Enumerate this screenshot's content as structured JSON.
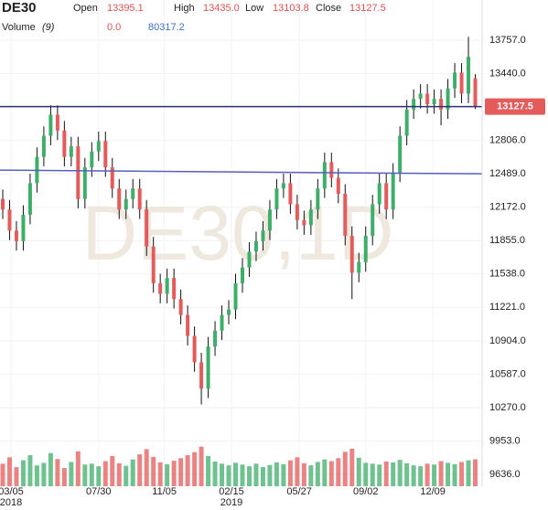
{
  "chart_data": {
    "type": "candlestick",
    "symbol": "DE30",
    "watermark": "DE30,1D",
    "ohlc_names": {
      "open": "Open",
      "high": "High",
      "low": "Low",
      "close": "Close"
    },
    "ohlc_labels": {
      "open": "13395.1",
      "high": "13435.0",
      "low": "13103.8",
      "close": "13127.5"
    },
    "volume_legend": {
      "name": "Volume",
      "period": "(9)",
      "ma_label": "0.0",
      "value_label": "80317.2"
    },
    "open": [
      12250,
      12150,
      11950,
      11850,
      12100,
      12400,
      12650,
      12850,
      13050,
      12900,
      12650,
      12750,
      12250,
      12550,
      12700,
      12800,
      12550,
      12350,
      12150,
      12250,
      12350,
      12150,
      11800,
      11450,
      11350,
      11500,
      11300,
      11150,
      10950,
      10700,
      10450,
      10850,
      11000,
      11150,
      11200,
      11450,
      11600,
      11750,
      11850,
      11950,
      12150,
      12350,
      12400,
      12200,
      12050,
      12000,
      12150,
      12350,
      12600,
      12450,
      12300,
      11900,
      11550,
      11650,
      11900,
      12200,
      12400,
      12150,
      12500,
      12850,
      13100,
      13200,
      13250,
      13150,
      13200,
      13100,
      13300,
      13450,
      13250,
      13395.1
    ],
    "high": [
      12340,
      12240,
      12040,
      12190,
      12490,
      12740,
      12940,
      13140,
      13140,
      12990,
      12840,
      12840,
      12640,
      12790,
      12890,
      12890,
      12640,
      12440,
      12340,
      12440,
      12440,
      12240,
      11890,
      11540,
      11590,
      11590,
      11390,
      11240,
      11040,
      10790,
      10940,
      11090,
      11240,
      11290,
      11540,
      11690,
      11840,
      11940,
      12040,
      12240,
      12440,
      12490,
      12490,
      12290,
      12140,
      12240,
      12440,
      12690,
      12690,
      12540,
      12390,
      11990,
      11740,
      11990,
      12290,
      12490,
      12490,
      12590,
      12940,
      13190,
      13290,
      13340,
      13340,
      13290,
      13290,
      13390,
      13540,
      13540,
      13790,
      13435.0
    ],
    "low": [
      12060,
      11860,
      11760,
      11760,
      12010,
      12310,
      12560,
      12760,
      12810,
      12560,
      12560,
      12160,
      12160,
      12460,
      12610,
      12460,
      12260,
      12060,
      12060,
      12160,
      12060,
      11710,
      11360,
      11260,
      11260,
      11210,
      11060,
      10860,
      10610,
      10300,
      10360,
      10760,
      10910,
      11060,
      11110,
      11360,
      11510,
      11660,
      11760,
      11860,
      12060,
      12260,
      12110,
      11960,
      11910,
      11910,
      12060,
      12260,
      12360,
      12210,
      11810,
      11300,
      11460,
      11560,
      11810,
      12110,
      12060,
      12060,
      12410,
      12760,
      13010,
      13110,
      13060,
      13060,
      12950,
      13010,
      13210,
      13160,
      13160,
      13103.8
    ],
    "close": [
      12150,
      11950,
      11850,
      12100,
      12400,
      12650,
      12850,
      13050,
      12900,
      12650,
      12750,
      12250,
      12550,
      12700,
      12800,
      12550,
      12350,
      12150,
      12250,
      12350,
      12150,
      11800,
      11450,
      11350,
      11500,
      11300,
      11150,
      10950,
      10700,
      10450,
      10850,
      11000,
      11150,
      11200,
      11450,
      11600,
      11750,
      11850,
      11950,
      12150,
      12350,
      12400,
      12200,
      12050,
      12000,
      12150,
      12350,
      12600,
      12450,
      12300,
      11900,
      11550,
      11650,
      11900,
      12200,
      12400,
      12150,
      12500,
      12850,
      13100,
      13200,
      13250,
      13150,
      13200,
      13100,
      13300,
      13450,
      13250,
      13600,
      13127.5
    ],
    "volume": [
      70000,
      85000,
      62000,
      78000,
      90000,
      66000,
      72000,
      95000,
      81000,
      60000,
      74000,
      99000,
      68000,
      70000,
      64000,
      76000,
      88000,
      71000,
      65000,
      80000,
      92000,
      104000,
      86000,
      73000,
      69000,
      77000,
      83000,
      90000,
      97000,
      110000,
      88000,
      75000,
      70000,
      66000,
      72000,
      68000,
      64000,
      70000,
      62000,
      67000,
      73000,
      69000,
      78000,
      85000,
      71000,
      66000,
      74000,
      80000,
      76000,
      83000,
      98000,
      105000,
      84000,
      72000,
      70000,
      68000,
      75000,
      73000,
      79000,
      71000,
      66000,
      64000,
      70000,
      68000,
      76000,
      72000,
      69000,
      74000,
      78000,
      80317.2
    ],
    "up_color": "#3fae6a",
    "down_color": "#e35b5b",
    "xlim": [
      -0.4,
      70
    ],
    "ylim": [
      9454,
      14139
    ],
    "volume_lim": [
      0,
      300000
    ],
    "yticks": [
      {
        "value": 13757,
        "label": "13757.0"
      },
      {
        "value": 13440,
        "label": "13440.0"
      },
      {
        "value": 12806,
        "label": "12806.0"
      },
      {
        "value": 12489,
        "label": "12489.0"
      },
      {
        "value": 12172,
        "label": "12172.0"
      },
      {
        "value": 11855,
        "label": "11855.0"
      },
      {
        "value": 11538,
        "label": "11538.0"
      },
      {
        "value": 11221,
        "label": "11221.0"
      },
      {
        "value": 10904,
        "label": "10904.0"
      },
      {
        "value": 10587,
        "label": "10587.0"
      },
      {
        "value": 10270,
        "label": "10270.0"
      },
      {
        "value": 9953,
        "label": "9953.0"
      },
      {
        "value": 9636,
        "label": "9636.0"
      }
    ],
    "xticks": [
      {
        "value": 1.2,
        "label": "03/05"
      },
      {
        "value": 14,
        "label": "07/30"
      },
      {
        "value": 23.6,
        "label": "11/05"
      },
      {
        "value": 33.4,
        "label": "02/15"
      },
      {
        "value": 43.3,
        "label": "05/27"
      },
      {
        "value": 53,
        "label": "09/02"
      },
      {
        "value": 62.8,
        "label": "12/09"
      }
    ],
    "xtick_years": [
      {
        "value": 1.2,
        "label": "2018"
      },
      {
        "value": 33.4,
        "label": "2019"
      }
    ],
    "lines": [
      {
        "start": 13127.5,
        "end": 13127.5,
        "color": "#2b3170"
      },
      {
        "start": 12524,
        "end": 12489,
        "color": "#5560c0"
      }
    ],
    "grid": true
  }
}
